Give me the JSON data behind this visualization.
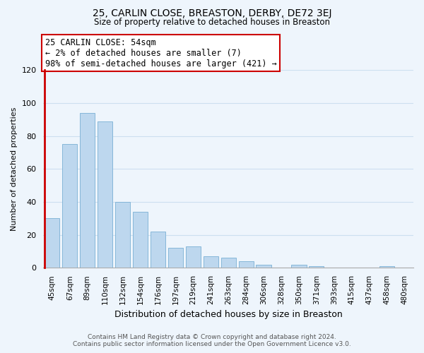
{
  "title": "25, CARLIN CLOSE, BREASTON, DERBY, DE72 3EJ",
  "subtitle": "Size of property relative to detached houses in Breaston",
  "xlabel": "Distribution of detached houses by size in Breaston",
  "ylabel": "Number of detached properties",
  "bar_labels": [
    "45sqm",
    "67sqm",
    "89sqm",
    "110sqm",
    "132sqm",
    "154sqm",
    "176sqm",
    "197sqm",
    "219sqm",
    "241sqm",
    "263sqm",
    "284sqm",
    "306sqm",
    "328sqm",
    "350sqm",
    "371sqm",
    "393sqm",
    "415sqm",
    "437sqm",
    "458sqm",
    "480sqm"
  ],
  "bar_values": [
    30,
    75,
    94,
    89,
    40,
    34,
    22,
    12,
    13,
    7,
    6,
    4,
    2,
    0,
    2,
    1,
    0,
    0,
    0,
    1,
    0
  ],
  "bar_color": "#bdd7ee",
  "bar_edge_color": "#7ab0d4",
  "highlight_bar_index": 0,
  "highlight_border_color": "#cc0000",
  "ylim": [
    0,
    120
  ],
  "yticks": [
    0,
    20,
    40,
    60,
    80,
    100,
    120
  ],
  "annotation_line1": "25 CARLIN CLOSE: 54sqm",
  "annotation_line2": "← 2% of detached houses are smaller (7)",
  "annotation_line3": "98% of semi-detached houses are larger (421) →",
  "footer_line1": "Contains HM Land Registry data © Crown copyright and database right 2024.",
  "footer_line2": "Contains public sector information licensed under the Open Government Licence v3.0.",
  "grid_color": "#ccdff0",
  "background_color": "#eef5fc"
}
